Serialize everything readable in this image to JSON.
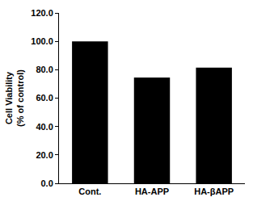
{
  "chart_data": {
    "type": "bar",
    "y_label": "Cell Viability\n(% of control)",
    "categories": [
      "Cont.",
      "HA-APP",
      "HA-βAPP"
    ],
    "values": [
      100.0,
      74.5,
      81.5
    ],
    "color": "#000000",
    "ylim": [
      0,
      120
    ],
    "yticks": [
      {
        "value": 0,
        "label": "0.0"
      },
      {
        "value": 20,
        "label": "20.0"
      },
      {
        "value": 40,
        "label": "40.0"
      },
      {
        "value": 60,
        "label": "60.0"
      },
      {
        "value": 80,
        "label": "80.0"
      },
      {
        "value": 100,
        "label": "100.0"
      },
      {
        "value": 120,
        "label": "120.0"
      }
    ],
    "grid": false
  }
}
